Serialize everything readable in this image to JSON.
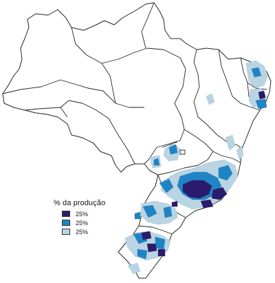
{
  "legend": {
    "title": "% da produção",
    "items": [
      {
        "label": "25%",
        "color": "#2c1a6e"
      },
      {
        "label": "25%",
        "color": "#1f84c6"
      },
      {
        "label": "25%",
        "color": "#b9d4e2"
      }
    ]
  },
  "colors": {
    "dark": "#2c1a6e",
    "mid": "#1f84c6",
    "light": "#b9d4e2",
    "border": "#222222"
  }
}
